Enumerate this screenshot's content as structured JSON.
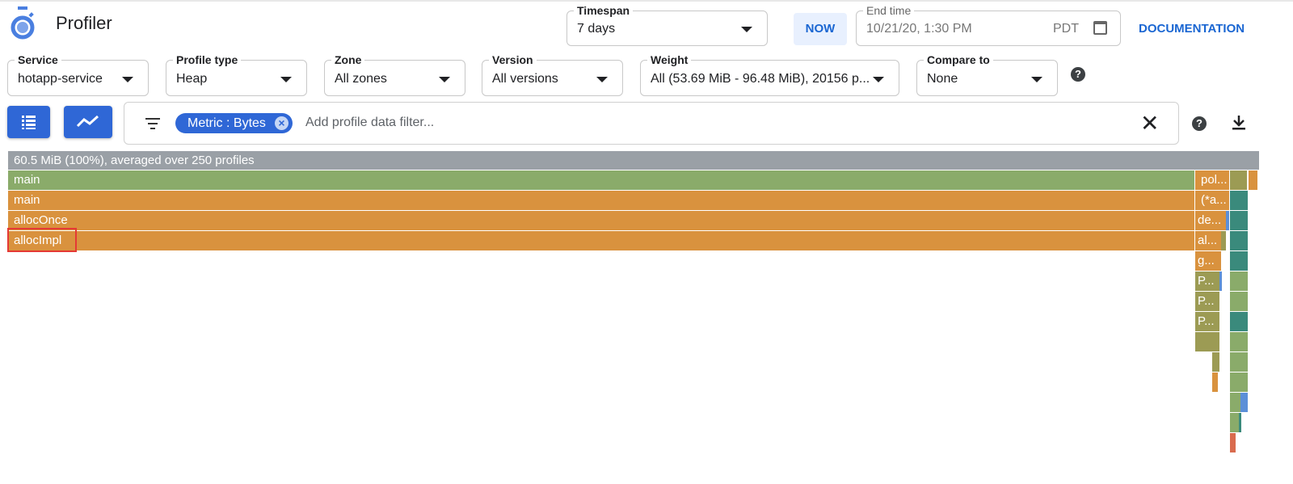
{
  "app": {
    "title": "Profiler",
    "logo_color": "#4a7fe0"
  },
  "timespan": {
    "label": "Timespan",
    "value": "7 days"
  },
  "now_label": "NOW",
  "end_time": {
    "label": "End time",
    "value": "10/21/20, 1:30 PM",
    "tz": "PDT"
  },
  "documentation_label": "DOCUMENTATION",
  "filters": [
    {
      "label": "Service",
      "value": "hotapp-service"
    },
    {
      "label": "Profile type",
      "value": "Heap"
    },
    {
      "label": "Zone",
      "value": "All zones"
    },
    {
      "label": "Version",
      "value": "All versions"
    },
    {
      "label": "Weight",
      "value": "All (53.69 MiB - 96.48 MiB), 20156 p..."
    },
    {
      "label": "Compare to",
      "value": "None"
    }
  ],
  "filter_bar": {
    "chip": "Metric : Bytes",
    "placeholder": "Add profile data filter..."
  },
  "flame": {
    "header": "60.5 MiB (100%), averaged over 250 profiles",
    "labels": [
      "main",
      "main",
      "allocOnce",
      "allocImpl",
      "pol...",
      "(*a...",
      "de...",
      "al...",
      "g...",
      "P...",
      "P...",
      "P..."
    ],
    "highlighted": "allocImpl",
    "colors": {
      "green": "#8aab6a",
      "orange": "#d9923e",
      "olive": "#9c9b54",
      "teal": "#3a8a7c",
      "blue": "#5b8fd8",
      "red": "#d96b4e",
      "header": "#9aa0a6"
    }
  }
}
